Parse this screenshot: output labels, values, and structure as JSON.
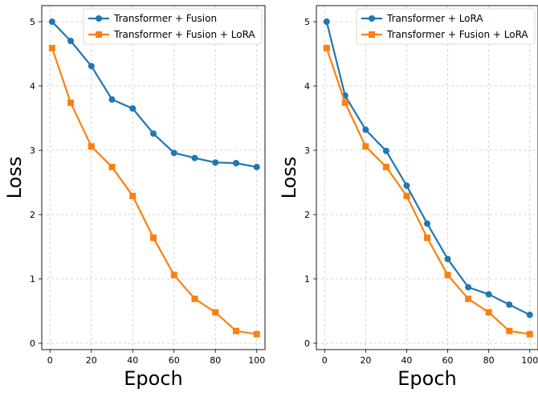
{
  "chart_data": [
    {
      "type": "line",
      "title": "",
      "xlabel": "Epoch",
      "ylabel": "Loss",
      "xlim": [
        -4,
        104
      ],
      "ylim": [
        -0.1,
        5.25
      ],
      "xticks": [
        "0",
        "20",
        "40",
        "60",
        "80",
        "100"
      ],
      "yticks": [
        "0",
        "1",
        "2",
        "3",
        "4",
        "5"
      ],
      "grid": true,
      "legend_placement": "top-right",
      "x": [
        1,
        10,
        20,
        30,
        40,
        50,
        60,
        70,
        80,
        90,
        100
      ],
      "series": [
        {
          "name": "Transformer + Fusion",
          "color": "#1f77b4",
          "marker": "circle",
          "values": [
            5.0,
            4.7,
            4.31,
            3.79,
            3.65,
            3.26,
            2.96,
            2.88,
            2.81,
            2.8,
            2.74
          ]
        },
        {
          "name": "Transformer + Fusion + LoRA",
          "color": "#ff7f0e",
          "marker": "square",
          "values": [
            4.59,
            3.74,
            3.06,
            2.74,
            2.29,
            1.64,
            1.06,
            0.69,
            0.48,
            0.19,
            0.14
          ]
        }
      ]
    },
    {
      "type": "line",
      "title": "",
      "xlabel": "Epoch",
      "ylabel": "Loss",
      "xlim": [
        -4,
        104
      ],
      "ylim": [
        -0.1,
        5.25
      ],
      "xticks": [
        "0",
        "20",
        "40",
        "60",
        "80",
        "100"
      ],
      "yticks": [
        "0",
        "1",
        "2",
        "3",
        "4",
        "5"
      ],
      "grid": true,
      "legend_placement": "top-right",
      "x": [
        1,
        10,
        20,
        30,
        40,
        50,
        60,
        70,
        80,
        90,
        100
      ],
      "series": [
        {
          "name": "Transformer + LoRA",
          "color": "#1f77b4",
          "marker": "circle",
          "values": [
            5.0,
            3.85,
            3.32,
            2.99,
            2.45,
            1.86,
            1.31,
            0.87,
            0.76,
            0.6,
            0.44
          ]
        },
        {
          "name": "Transformer + Fusion + LoRA",
          "color": "#ff7f0e",
          "marker": "square",
          "values": [
            4.59,
            3.74,
            3.06,
            2.74,
            2.29,
            1.64,
            1.06,
            0.69,
            0.48,
            0.19,
            0.14
          ]
        }
      ]
    }
  ]
}
